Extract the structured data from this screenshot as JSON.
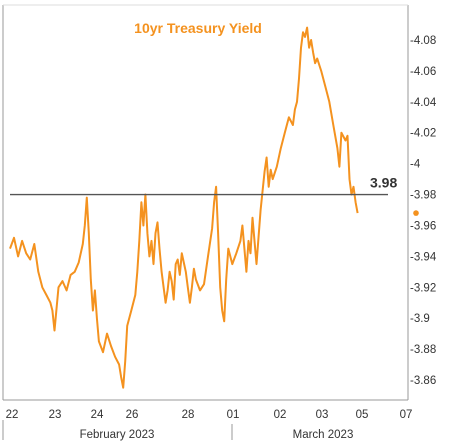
{
  "chart_data": {
    "type": "line",
    "title": "10yr Treasury Yield",
    "xlabel": "",
    "ylabel": "",
    "ylim": [
      3.85,
      4.09
    ],
    "yticks": [
      {
        "value": 4.08,
        "label": "-4.08"
      },
      {
        "value": 4.06,
        "label": "-4.06"
      },
      {
        "value": 4.04,
        "label": "-4.04"
      },
      {
        "value": 4.02,
        "label": "-4.02"
      },
      {
        "value": 4.0,
        "label": "-4"
      },
      {
        "value": 3.98,
        "label": "-3.98"
      },
      {
        "value": 3.96,
        "label": "-3.96"
      },
      {
        "value": 3.94,
        "label": "-3.94"
      },
      {
        "value": 3.92,
        "label": "-3.92"
      },
      {
        "value": 3.9,
        "label": "-3.9"
      },
      {
        "value": 3.88,
        "label": "-3.88"
      },
      {
        "value": 3.86,
        "label": "-3.86"
      }
    ],
    "xticks": [
      "22",
      "23",
      "24",
      "26",
      "28",
      "01",
      "02",
      "03",
      "05",
      "07"
    ],
    "month_labels": [
      "February 2023",
      "March 2023"
    ],
    "reference_line": {
      "value": 3.98,
      "label": "3.98"
    },
    "last_value": 3.968,
    "grid": false,
    "series": [
      {
        "values": [
          [
            0.0,
            3.945
          ],
          [
            0.1,
            3.952
          ],
          [
            0.2,
            3.94
          ],
          [
            0.3,
            3.95
          ],
          [
            0.4,
            3.942
          ],
          [
            0.5,
            3.938
          ],
          [
            0.6,
            3.948
          ],
          [
            0.7,
            3.93
          ],
          [
            0.8,
            3.92
          ],
          [
            0.9,
            3.915
          ],
          [
            1.0,
            3.91
          ],
          [
            1.05,
            3.905
          ],
          [
            1.1,
            3.892
          ],
          [
            1.2,
            3.92
          ],
          [
            1.3,
            3.924
          ],
          [
            1.4,
            3.918
          ],
          [
            1.5,
            3.928
          ],
          [
            1.6,
            3.93
          ],
          [
            1.7,
            3.936
          ],
          [
            1.8,
            3.948
          ],
          [
            1.85,
            3.96
          ],
          [
            1.9,
            3.978
          ],
          [
            1.95,
            3.955
          ],
          [
            2.0,
            3.925
          ],
          [
            2.05,
            3.905
          ],
          [
            2.1,
            3.918
          ],
          [
            2.15,
            3.9
          ],
          [
            2.2,
            3.885
          ],
          [
            2.3,
            3.878
          ],
          [
            2.4,
            3.89
          ],
          [
            2.5,
            3.882
          ],
          [
            2.6,
            3.875
          ],
          [
            2.7,
            3.87
          ],
          [
            2.75,
            3.862
          ],
          [
            2.8,
            3.855
          ],
          [
            2.85,
            3.872
          ],
          [
            2.9,
            3.895
          ],
          [
            3.0,
            3.905
          ],
          [
            3.1,
            3.915
          ],
          [
            3.15,
            3.93
          ],
          [
            3.2,
            3.95
          ],
          [
            3.25,
            3.975
          ],
          [
            3.3,
            3.96
          ],
          [
            3.35,
            3.98
          ],
          [
            3.4,
            3.955
          ],
          [
            3.45,
            3.94
          ],
          [
            3.5,
            3.95
          ],
          [
            3.55,
            3.935
          ],
          [
            3.6,
            3.955
          ],
          [
            3.65,
            3.962
          ],
          [
            3.7,
            3.945
          ],
          [
            3.75,
            3.93
          ],
          [
            3.8,
            3.92
          ],
          [
            3.85,
            3.91
          ],
          [
            3.9,
            3.918
          ],
          [
            3.95,
            3.93
          ],
          [
            4.0,
            3.924
          ],
          [
            4.05,
            3.912
          ],
          [
            4.1,
            3.935
          ],
          [
            4.15,
            3.938
          ],
          [
            4.2,
            3.928
          ],
          [
            4.25,
            3.942
          ],
          [
            4.3,
            3.936
          ],
          [
            4.35,
            3.93
          ],
          [
            4.4,
            3.92
          ],
          [
            4.45,
            3.91
          ],
          [
            4.5,
            3.92
          ],
          [
            4.55,
            3.932
          ],
          [
            4.6,
            3.925
          ],
          [
            4.7,
            3.918
          ],
          [
            4.8,
            3.922
          ],
          [
            4.9,
            3.94
          ],
          [
            5.0,
            3.958
          ],
          [
            5.05,
            3.975
          ],
          [
            5.1,
            3.985
          ],
          [
            5.15,
            3.955
          ],
          [
            5.2,
            3.92
          ],
          [
            5.25,
            3.905
          ],
          [
            5.3,
            3.898
          ],
          [
            5.35,
            3.925
          ],
          [
            5.4,
            3.945
          ],
          [
            5.5,
            3.935
          ],
          [
            5.6,
            3.942
          ],
          [
            5.7,
            3.95
          ],
          [
            5.75,
            3.96
          ],
          [
            5.8,
            3.945
          ],
          [
            5.85,
            3.93
          ],
          [
            5.9,
            3.95
          ],
          [
            5.95,
            3.942
          ],
          [
            6.0,
            3.965
          ],
          [
            6.1,
            3.935
          ],
          [
            6.2,
            3.97
          ],
          [
            6.3,
            3.995
          ],
          [
            6.35,
            4.004
          ],
          [
            6.4,
            3.985
          ],
          [
            6.45,
            3.996
          ],
          [
            6.5,
            3.99
          ],
          [
            6.6,
            3.998
          ],
          [
            6.7,
            4.01
          ],
          [
            6.8,
            4.02
          ],
          [
            6.9,
            4.03
          ],
          [
            7.0,
            4.025
          ],
          [
            7.05,
            4.035
          ],
          [
            7.1,
            4.04
          ],
          [
            7.15,
            4.055
          ],
          [
            7.2,
            4.075
          ],
          [
            7.25,
            4.085
          ],
          [
            7.3,
            4.082
          ],
          [
            7.35,
            4.088
          ],
          [
            7.4,
            4.075
          ],
          [
            7.45,
            4.08
          ],
          [
            7.5,
            4.072
          ],
          [
            7.55,
            4.065
          ],
          [
            7.6,
            4.068
          ],
          [
            7.7,
            4.06
          ],
          [
            7.8,
            4.05
          ],
          [
            7.9,
            4.04
          ],
          [
            8.0,
            4.025
          ],
          [
            8.1,
            4.01
          ],
          [
            8.15,
            3.998
          ],
          [
            8.2,
            4.02
          ],
          [
            8.3,
            4.015
          ],
          [
            8.35,
            4.018
          ],
          [
            8.4,
            3.99
          ],
          [
            8.45,
            3.98
          ],
          [
            8.5,
            3.985
          ],
          [
            8.55,
            3.975
          ],
          [
            8.6,
            3.968
          ]
        ]
      }
    ]
  }
}
